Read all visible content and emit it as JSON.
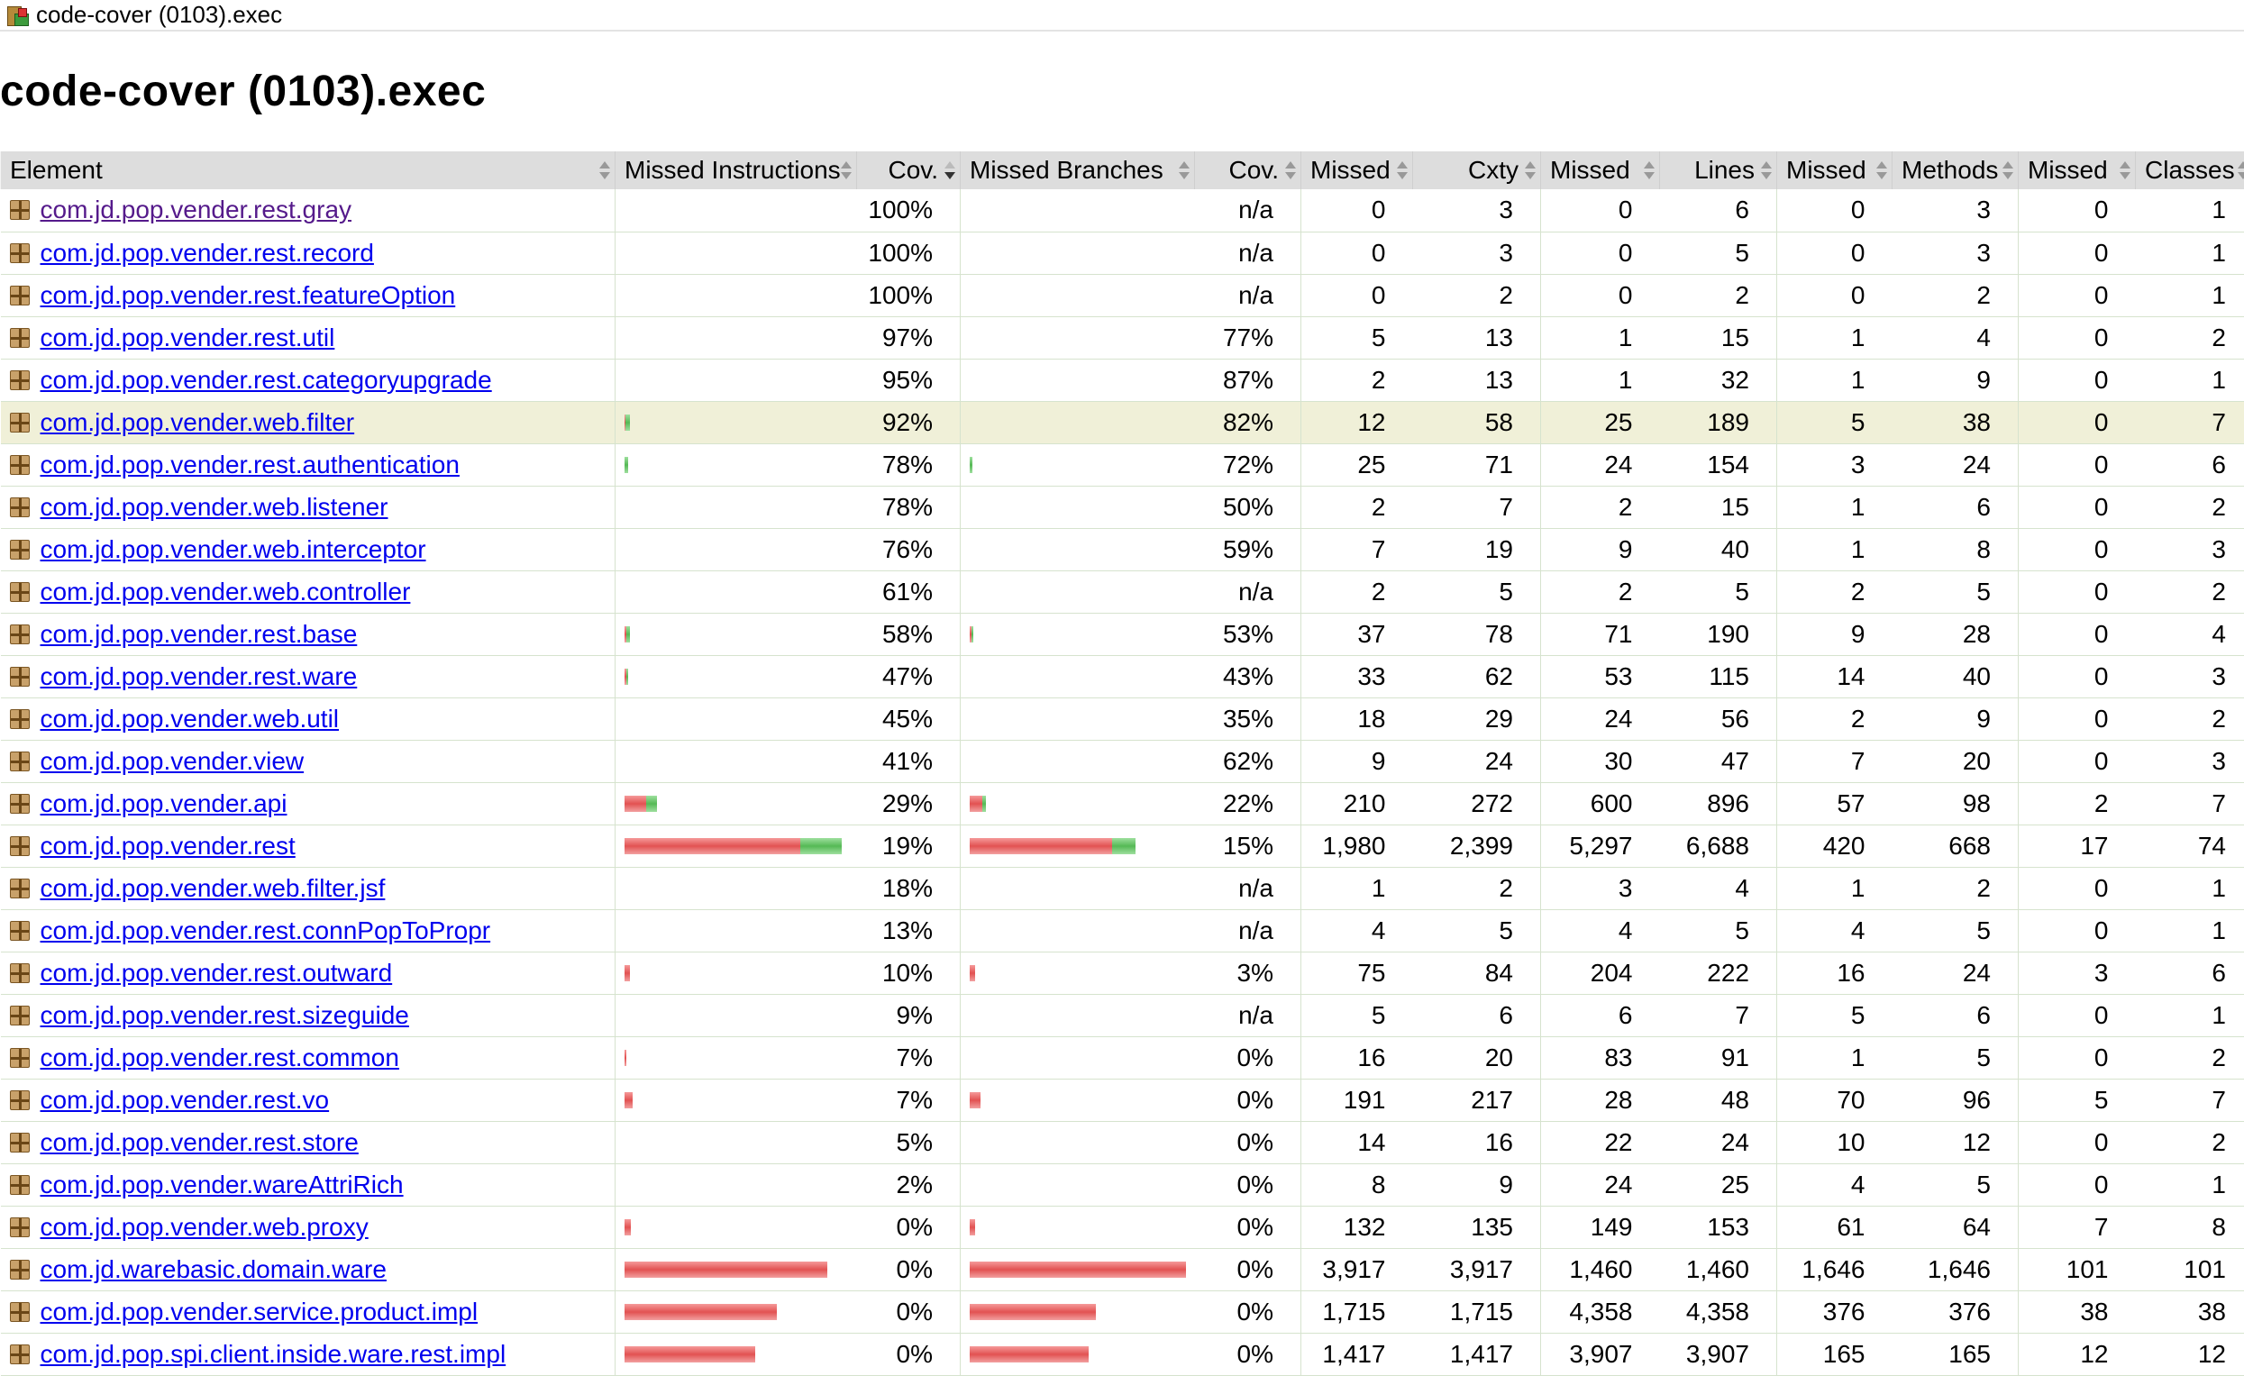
{
  "breadcrumb": {
    "icon": "report-icon",
    "title": "code-cover (0103).exec"
  },
  "page_title": "code-cover (0103).exec",
  "table": {
    "headers": [
      "Element",
      "Missed Instructions",
      "Cov.",
      "Missed Branches",
      "Cov.",
      "Missed",
      "Cxty",
      "Missed",
      "Lines",
      "Missed",
      "Methods",
      "Missed",
      "Classes"
    ],
    "rows": [
      {
        "name": "com.jd.pop.vender.rest.gray",
        "visited": true,
        "ibar": [
          0,
          0
        ],
        "icov": "100%",
        "bbar": [
          0,
          0
        ],
        "bcov": "n/a",
        "v": [
          "0",
          "3",
          "0",
          "6",
          "0",
          "3",
          "0",
          "1"
        ]
      },
      {
        "name": "com.jd.pop.vender.rest.record",
        "ibar": [
          0,
          0
        ],
        "icov": "100%",
        "bbar": [
          0,
          0
        ],
        "bcov": "n/a",
        "v": [
          "0",
          "3",
          "0",
          "5",
          "0",
          "3",
          "0",
          "1"
        ]
      },
      {
        "name": "com.jd.pop.vender.rest.featureOption",
        "ibar": [
          0,
          0
        ],
        "icov": "100%",
        "bbar": [
          0,
          0
        ],
        "bcov": "n/a",
        "v": [
          "0",
          "2",
          "0",
          "2",
          "0",
          "2",
          "0",
          "1"
        ]
      },
      {
        "name": "com.jd.pop.vender.rest.util",
        "ibar": [
          0,
          0
        ],
        "icov": "97%",
        "bbar": [
          0,
          0
        ],
        "bcov": "77%",
        "v": [
          "5",
          "13",
          "1",
          "15",
          "1",
          "4",
          "0",
          "2"
        ]
      },
      {
        "name": "com.jd.pop.vender.rest.categoryupgrade",
        "ibar": [
          0,
          0
        ],
        "icov": "95%",
        "bbar": [
          0,
          0
        ],
        "bcov": "87%",
        "v": [
          "2",
          "13",
          "1",
          "32",
          "1",
          "9",
          "0",
          "1"
        ]
      },
      {
        "name": "com.jd.pop.vender.web.filter",
        "highlight": true,
        "ibar": [
          1,
          5
        ],
        "icov": "92%",
        "bbar": [
          0,
          0
        ],
        "bcov": "82%",
        "v": [
          "12",
          "58",
          "25",
          "189",
          "5",
          "38",
          "0",
          "7"
        ]
      },
      {
        "name": "com.jd.pop.vender.rest.authentication",
        "ibar": [
          0,
          4
        ],
        "icov": "78%",
        "bbar": [
          0,
          3
        ],
        "bcov": "72%",
        "v": [
          "25",
          "71",
          "24",
          "154",
          "3",
          "24",
          "0",
          "6"
        ]
      },
      {
        "name": "com.jd.pop.vender.web.listener",
        "ibar": [
          0,
          0
        ],
        "icov": "78%",
        "bbar": [
          0,
          0
        ],
        "bcov": "50%",
        "v": [
          "2",
          "7",
          "2",
          "15",
          "1",
          "6",
          "0",
          "2"
        ]
      },
      {
        "name": "com.jd.pop.vender.web.interceptor",
        "ibar": [
          0,
          0
        ],
        "icov": "76%",
        "bbar": [
          0,
          0
        ],
        "bcov": "59%",
        "v": [
          "7",
          "19",
          "9",
          "40",
          "1",
          "8",
          "0",
          "3"
        ]
      },
      {
        "name": "com.jd.pop.vender.web.controller",
        "ibar": [
          0,
          0
        ],
        "icov": "61%",
        "bbar": [
          0,
          0
        ],
        "bcov": "n/a",
        "v": [
          "2",
          "5",
          "2",
          "5",
          "2",
          "5",
          "0",
          "2"
        ]
      },
      {
        "name": "com.jd.pop.vender.rest.base",
        "ibar": [
          2,
          4
        ],
        "icov": "58%",
        "bbar": [
          2,
          2
        ],
        "bcov": "53%",
        "v": [
          "37",
          "78",
          "71",
          "190",
          "9",
          "28",
          "0",
          "4"
        ]
      },
      {
        "name": "com.jd.pop.vender.rest.ware",
        "ibar": [
          2,
          2
        ],
        "icov": "47%",
        "bbar": [
          0,
          0
        ],
        "bcov": "43%",
        "v": [
          "33",
          "62",
          "53",
          "115",
          "14",
          "40",
          "0",
          "3"
        ]
      },
      {
        "name": "com.jd.pop.vender.web.util",
        "ibar": [
          0,
          0
        ],
        "icov": "45%",
        "bbar": [
          0,
          0
        ],
        "bcov": "35%",
        "v": [
          "18",
          "29",
          "24",
          "56",
          "2",
          "9",
          "0",
          "2"
        ]
      },
      {
        "name": "com.jd.pop.vender.view",
        "ibar": [
          0,
          0
        ],
        "icov": "41%",
        "bbar": [
          0,
          0
        ],
        "bcov": "62%",
        "v": [
          "9",
          "24",
          "30",
          "47",
          "7",
          "20",
          "0",
          "3"
        ]
      },
      {
        "name": "com.jd.pop.vender.api",
        "ibar": [
          24,
          12
        ],
        "icov": "29%",
        "bbar": [
          14,
          4
        ],
        "bcov": "22%",
        "v": [
          "210",
          "272",
          "600",
          "896",
          "57",
          "98",
          "2",
          "7"
        ]
      },
      {
        "name": "com.jd.pop.vender.rest",
        "ibar": [
          195,
          46
        ],
        "icov": "19%",
        "bbar": [
          158,
          26
        ],
        "bcov": "15%",
        "v": [
          "1,980",
          "2,399",
          "5,297",
          "6,688",
          "420",
          "668",
          "17",
          "74"
        ]
      },
      {
        "name": "com.jd.pop.vender.web.filter.jsf",
        "ibar": [
          0,
          0
        ],
        "icov": "18%",
        "bbar": [
          0,
          0
        ],
        "bcov": "n/a",
        "v": [
          "1",
          "2",
          "3",
          "4",
          "1",
          "2",
          "0",
          "1"
        ]
      },
      {
        "name": "com.jd.pop.vender.rest.connPopToPropr",
        "ibar": [
          0,
          0
        ],
        "icov": "13%",
        "bbar": [
          0,
          0
        ],
        "bcov": "n/a",
        "v": [
          "4",
          "5",
          "4",
          "5",
          "4",
          "5",
          "0",
          "1"
        ]
      },
      {
        "name": "com.jd.pop.vender.rest.outward",
        "ibar": [
          6,
          0
        ],
        "icov": "10%",
        "bbar": [
          6,
          0
        ],
        "bcov": "3%",
        "v": [
          "75",
          "84",
          "204",
          "222",
          "16",
          "24",
          "3",
          "6"
        ]
      },
      {
        "name": "com.jd.pop.vender.rest.sizeguide",
        "ibar": [
          0,
          0
        ],
        "icov": "9%",
        "bbar": [
          0,
          0
        ],
        "bcov": "n/a",
        "v": [
          "5",
          "6",
          "6",
          "7",
          "5",
          "6",
          "0",
          "1"
        ]
      },
      {
        "name": "com.jd.pop.vender.rest.common",
        "ibar": [
          2,
          0
        ],
        "icov": "7%",
        "bbar": [
          0,
          0
        ],
        "bcov": "0%",
        "v": [
          "16",
          "20",
          "83",
          "91",
          "1",
          "5",
          "0",
          "2"
        ]
      },
      {
        "name": "com.jd.pop.vender.rest.vo",
        "ibar": [
          9,
          0
        ],
        "icov": "7%",
        "bbar": [
          12,
          0
        ],
        "bcov": "0%",
        "v": [
          "191",
          "217",
          "28",
          "48",
          "70",
          "96",
          "5",
          "7"
        ]
      },
      {
        "name": "com.jd.pop.vender.rest.store",
        "ibar": [
          0,
          0
        ],
        "icov": "5%",
        "bbar": [
          0,
          0
        ],
        "bcov": "0%",
        "v": [
          "14",
          "16",
          "22",
          "24",
          "10",
          "12",
          "0",
          "2"
        ]
      },
      {
        "name": "com.jd.pop.vender.wareAttriRich",
        "ibar": [
          0,
          0
        ],
        "icov": "2%",
        "bbar": [
          0,
          0
        ],
        "bcov": "0%",
        "v": [
          "8",
          "9",
          "24",
          "25",
          "4",
          "5",
          "0",
          "1"
        ]
      },
      {
        "name": "com.jd.pop.vender.web.proxy",
        "ibar": [
          7,
          0
        ],
        "icov": "0%",
        "bbar": [
          6,
          0
        ],
        "bcov": "0%",
        "v": [
          "132",
          "135",
          "149",
          "153",
          "61",
          "64",
          "7",
          "8"
        ]
      },
      {
        "name": "com.jd.warebasic.domain.ware",
        "ibar": [
          225,
          0
        ],
        "icov": "0%",
        "bbar": [
          240,
          0
        ],
        "bcov": "0%",
        "v": [
          "3,917",
          "3,917",
          "1,460",
          "1,460",
          "1,646",
          "1,646",
          "101",
          "101"
        ]
      },
      {
        "name": "com.jd.pop.vender.service.product.impl",
        "ibar": [
          169,
          0
        ],
        "icov": "0%",
        "bbar": [
          140,
          0
        ],
        "bcov": "0%",
        "v": [
          "1,715",
          "1,715",
          "4,358",
          "4,358",
          "376",
          "376",
          "38",
          "38"
        ]
      },
      {
        "name": "com.jd.pop.spi.client.inside.ware.rest.impl",
        "ibar": [
          145,
          0
        ],
        "icov": "0%",
        "bbar": [
          132,
          0
        ],
        "bcov": "0%",
        "v": [
          "1,417",
          "1,417",
          "3,907",
          "3,907",
          "165",
          "165",
          "12",
          "12"
        ]
      }
    ]
  },
  "colors": {
    "header_bg": "#dddddd",
    "highlight_row": "#f0f0d8",
    "link": "#0000ee",
    "visited_link": "#551a8b",
    "bar_missed": "#e25252",
    "bar_covered": "#55b955"
  }
}
